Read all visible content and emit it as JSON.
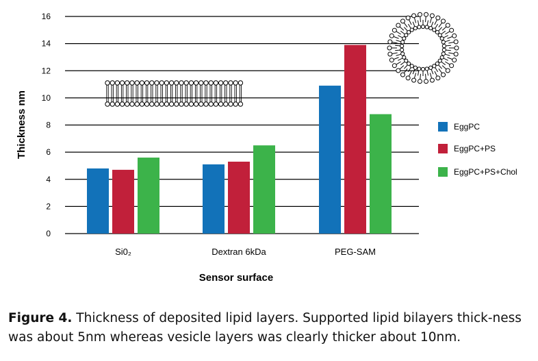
{
  "chart_data": {
    "type": "bar",
    "xlabel": "Sensor surface",
    "ylabel": "Thickness nm",
    "ylim": [
      0,
      16
    ],
    "yticks": [
      "0",
      "2",
      "4",
      "6",
      "8",
      "10",
      "12",
      "14",
      "16"
    ],
    "grid": true,
    "legend_position": "right",
    "categories": [
      "Si0₂",
      "Dextran 6kDa",
      "PEG-SAM"
    ],
    "series": [
      {
        "name": "EggPC",
        "color": "#1272b9",
        "values": [
          4.8,
          5.1,
          10.9
        ]
      },
      {
        "name": "EggPC+PS",
        "color": "#c1203a",
        "values": [
          4.7,
          5.3,
          13.9
        ]
      },
      {
        "name": "EggPC+PS+Chol",
        "color": "#3cb34a",
        "values": [
          5.6,
          6.5,
          8.8
        ]
      }
    ]
  },
  "caption": {
    "label": "Figure 4.",
    "text": " Thickness of deposited lipid layers. Supported lipid bilayers thick-ness was about 5nm whereas vesicle layers was clearly thicker about 10nm."
  }
}
